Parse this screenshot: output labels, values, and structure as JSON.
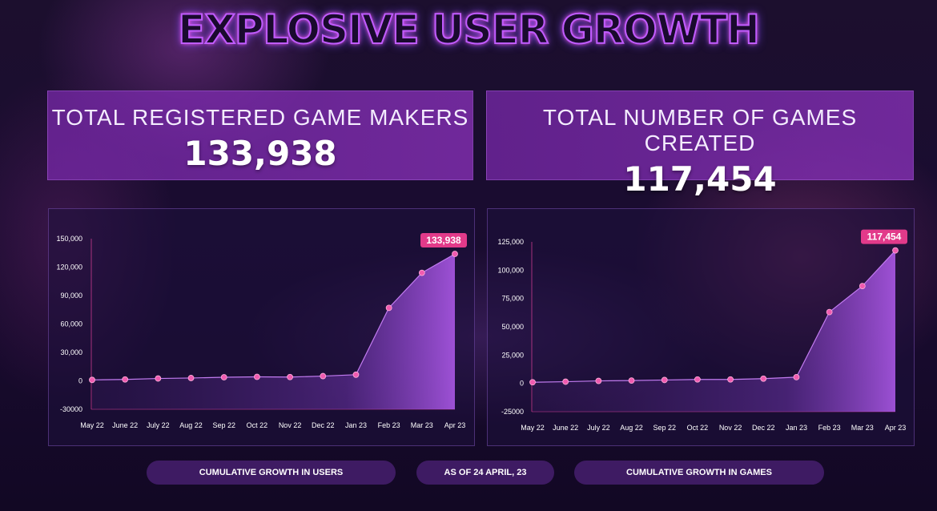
{
  "title": "EXPLOSIVE USER GROWTH",
  "stats": {
    "makers": {
      "label": "TOTAL REGISTERED GAME MAKERS",
      "value": "133,938"
    },
    "games": {
      "label": "TOTAL NUMBER OF GAMES CREATED",
      "value": "117,454"
    }
  },
  "footer": {
    "users": "CUMULATIVE GROWTH IN USERS",
    "date": "AS OF 24 APRIL, 23",
    "games": "CUMULATIVE GROWTH IN GAMES"
  },
  "colors": {
    "accent": "#e0409a",
    "line": "#c27bf0",
    "point": "#f05bb0",
    "callout": "#e23a8a"
  },
  "chart_data": [
    {
      "type": "area",
      "title": "",
      "xlabel": "",
      "ylabel": "",
      "categories": [
        "May 22",
        "June 22",
        "July 22",
        "Aug 22",
        "Sep 22",
        "Oct 22",
        "Nov 22",
        "Dec 22",
        "Jan 23",
        "Feb 23",
        "Mar 23",
        "Apr 23"
      ],
      "values": [
        1000,
        1500,
        2500,
        3000,
        3800,
        4200,
        4000,
        5000,
        6500,
        77000,
        114000,
        133938
      ],
      "yticks": [
        "150,000",
        "120,000",
        "90,000",
        "60,000",
        "30,000",
        "0",
        "-30000"
      ],
      "ylim": [
        -30000,
        150000
      ],
      "callout": "133,938",
      "grid": false
    },
    {
      "type": "area",
      "title": "",
      "xlabel": "",
      "ylabel": "",
      "categories": [
        "May 22",
        "June 22",
        "July 22",
        "Aug 22",
        "Sep 22",
        "Oct 22",
        "Nov 22",
        "Dec 22",
        "Jan 23",
        "Feb 23",
        "Mar 23",
        "Apr 23"
      ],
      "values": [
        1000,
        1500,
        2200,
        2500,
        3000,
        3500,
        3500,
        4200,
        5500,
        63000,
        86000,
        117454
      ],
      "yticks": [
        "125,000",
        "100,000",
        "75,000",
        "50,000",
        "25,000",
        "0",
        "-25000"
      ],
      "ylim": [
        -25000,
        125000
      ],
      "callout": "117,454",
      "grid": false
    }
  ]
}
